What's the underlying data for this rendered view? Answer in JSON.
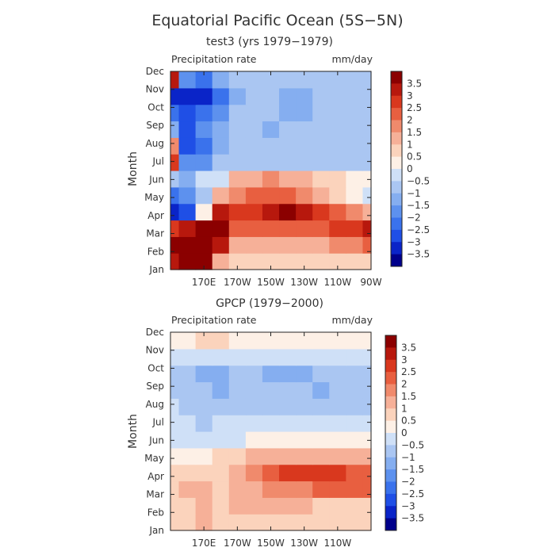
{
  "figure": {
    "title": "Equatorial Pacific Ocean (5S−5N)"
  },
  "colorbar": {
    "colors": [
      "#00008b",
      "#0a24c8",
      "#1f4fe6",
      "#3a72ec",
      "#5d91ee",
      "#85aef0",
      "#aac6f2",
      "#cfe0f7",
      "#fdf0e6",
      "#fbd3bc",
      "#f6b098",
      "#f08a6c",
      "#e85f40",
      "#d9381e",
      "#b7180d",
      "#8b0000"
    ],
    "labels": [
      "3.5",
      "3",
      "2.5",
      "2",
      "1.5",
      "1",
      "0.5",
      "0",
      "−0.5",
      "−1",
      "−1.5",
      "−2",
      "−2.5",
      "−3",
      "−3.5"
    ]
  },
  "chart_data": [
    {
      "type": "heatmap",
      "title": "test3 (yrs 1979−1979)",
      "field_label": "Precipitation rate",
      "units": "mm/day",
      "ylabel": "Month",
      "yticks": [
        "Jan",
        "Feb",
        "Mar",
        "Apr",
        "May",
        "Jun",
        "Jul",
        "Aug",
        "Sep",
        "Oct",
        "Nov",
        "Dec"
      ],
      "xticks": [
        "170E",
        "170W",
        "150W",
        "130W",
        "110W",
        "90W"
      ],
      "longitudes": [
        150,
        160,
        170,
        180,
        190,
        200,
        210,
        220,
        230,
        240,
        250,
        260,
        270
      ],
      "xlim": [
        150,
        270
      ],
      "months": [
        "Jan",
        "Feb",
        "Mar",
        "Apr",
        "May",
        "Jun",
        "Jul",
        "Aug",
        "Sep",
        "Oct",
        "Nov",
        "Dec"
      ],
      "values": [
        [
          3.0,
          3.5,
          3.5,
          1.0,
          0.5,
          0.5,
          0.5,
          0.5,
          0.5,
          0.5,
          0.5,
          0.5,
          0.5
        ],
        [
          3.5,
          3.5,
          3.5,
          3.0,
          1.0,
          1.0,
          1.0,
          1.0,
          1.0,
          1.0,
          1.5,
          1.5,
          2.0
        ],
        [
          2.5,
          3.0,
          3.5,
          3.5,
          2.0,
          2.0,
          2.0,
          2.0,
          2.0,
          2.0,
          2.5,
          2.5,
          3.0
        ],
        [
          -3.5,
          -3.0,
          0.0,
          3.0,
          2.5,
          2.5,
          3.0,
          3.5,
          3.0,
          2.5,
          2.0,
          1.5,
          1.0
        ],
        [
          -2.5,
          -2.0,
          -1.0,
          1.0,
          1.5,
          2.0,
          2.0,
          2.0,
          1.5,
          1.0,
          0.5,
          0.0,
          -0.5
        ],
        [
          -1.0,
          -1.5,
          -0.5,
          -0.5,
          1.0,
          1.0,
          1.5,
          1.0,
          1.0,
          0.5,
          0.5,
          0.0,
          0.0
        ],
        [
          2.5,
          -2.0,
          -2.0,
          -1.0,
          -1.0,
          -1.0,
          -1.0,
          -1.0,
          -1.0,
          -1.0,
          -1.0,
          -1.0,
          -1.0
        ],
        [
          1.5,
          -3.0,
          -2.5,
          -1.5,
          -1.0,
          -1.0,
          -1.0,
          -1.0,
          -1.0,
          -1.0,
          -1.0,
          -1.0,
          -1.0
        ],
        [
          -1.5,
          -3.0,
          -2.0,
          -1.5,
          -1.0,
          -1.0,
          -1.5,
          -1.0,
          -1.0,
          -1.0,
          -1.0,
          -1.0,
          -1.0
        ],
        [
          -2.5,
          -3.0,
          -2.5,
          -2.0,
          -1.0,
          -1.0,
          -1.0,
          -1.5,
          -1.5,
          -1.0,
          -1.0,
          -1.0,
          -1.0
        ],
        [
          -3.5,
          -3.5,
          -3.5,
          -2.5,
          -1.5,
          -1.0,
          -1.0,
          -1.5,
          -1.5,
          -1.0,
          -1.0,
          -1.0,
          -1.0
        ],
        [
          3.0,
          -2.0,
          -2.5,
          -1.5,
          -1.0,
          -1.0,
          -1.0,
          -1.0,
          -1.0,
          -1.0,
          -1.0,
          -1.0,
          -1.0
        ]
      ]
    },
    {
      "type": "heatmap",
      "title": "GPCP (1979−2000)",
      "field_label": "Precipitation rate",
      "units": "mm/day",
      "ylabel": "Month",
      "yticks": [
        "Jan",
        "Feb",
        "Mar",
        "Apr",
        "May",
        "Jun",
        "Jul",
        "Aug",
        "Sep",
        "Oct",
        "Nov",
        "Dec"
      ],
      "xticks": [
        "170E",
        "170W",
        "150W",
        "130W",
        "110W"
      ],
      "longitudes": [
        150,
        160,
        170,
        180,
        190,
        200,
        210,
        220,
        230,
        240,
        250,
        260,
        270
      ],
      "xlim": [
        150,
        270
      ],
      "months": [
        "Jan",
        "Feb",
        "Mar",
        "Apr",
        "May",
        "Jun",
        "Jul",
        "Aug",
        "Sep",
        "Oct",
        "Nov",
        "Dec"
      ],
      "values": [
        [
          0.5,
          0.5,
          1.0,
          0.5,
          0.5,
          0.5,
          0.5,
          0.5,
          0.5,
          0.5,
          0.5,
          0.5,
          0.5
        ],
        [
          0.5,
          0.5,
          1.0,
          0.5,
          1.0,
          1.0,
          1.0,
          1.0,
          1.0,
          0.5,
          0.5,
          0.5,
          0.5
        ],
        [
          0.5,
          1.0,
          1.0,
          0.5,
          1.0,
          1.0,
          1.5,
          1.5,
          1.5,
          2.0,
          2.0,
          2.0,
          2.0
        ],
        [
          0.5,
          0.5,
          0.5,
          0.5,
          1.0,
          1.5,
          2.0,
          2.5,
          2.5,
          2.5,
          2.5,
          2.0,
          2.0
        ],
        [
          0.0,
          0.0,
          0.0,
          0.5,
          0.5,
          1.0,
          1.0,
          1.0,
          1.0,
          1.0,
          1.0,
          1.0,
          1.0
        ],
        [
          -0.5,
          -0.5,
          -0.5,
          -0.5,
          -0.5,
          0.0,
          0.0,
          0.0,
          0.0,
          0.0,
          0.0,
          0.0,
          0.0
        ],
        [
          -0.5,
          -0.5,
          -1.0,
          -0.5,
          -0.5,
          -0.5,
          -0.5,
          -0.5,
          -0.5,
          -0.5,
          -0.5,
          -0.5,
          -0.5
        ],
        [
          -0.5,
          -1.0,
          -1.0,
          -1.0,
          -1.0,
          -1.0,
          -1.0,
          -1.0,
          -1.0,
          -1.0,
          -1.0,
          -1.0,
          -1.0
        ],
        [
          -1.0,
          -1.0,
          -1.0,
          -1.5,
          -1.0,
          -1.0,
          -1.0,
          -1.0,
          -1.0,
          -1.5,
          -1.0,
          -1.0,
          -1.0
        ],
        [
          -1.0,
          -1.0,
          -1.5,
          -1.5,
          -1.0,
          -1.0,
          -1.5,
          -1.5,
          -1.5,
          -1.0,
          -1.0,
          -1.0,
          -1.0
        ],
        [
          -0.5,
          -0.5,
          -0.5,
          -0.5,
          -0.5,
          -0.5,
          -0.5,
          -0.5,
          -0.5,
          -0.5,
          -0.5,
          -0.5,
          -0.5
        ],
        [
          0.0,
          0.0,
          0.5,
          0.5,
          0.0,
          0.0,
          0.0,
          0.0,
          0.0,
          0.0,
          0.0,
          0.0,
          0.0
        ]
      ]
    }
  ]
}
